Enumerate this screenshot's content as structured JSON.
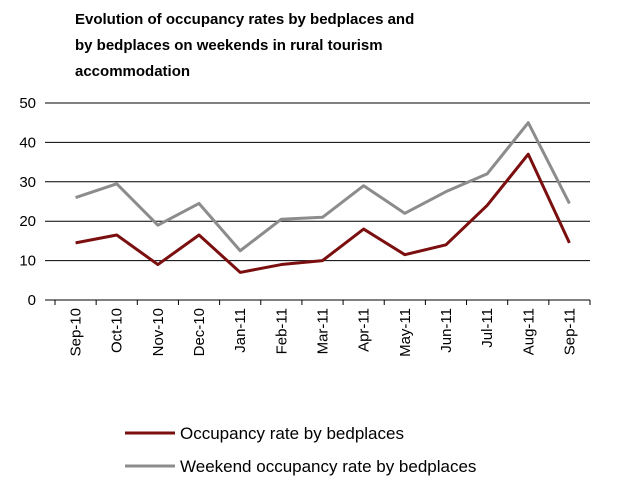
{
  "chart_data": {
    "type": "line",
    "title": [
      "Evolution of occupancy rates by bedplaces and",
      "by bedplaces on weekends in rural tourism",
      "accommodation"
    ],
    "categories": [
      "Sep-10",
      "Oct-10",
      "Nov-10",
      "Dec-10",
      "Jan-11",
      "Feb-11",
      "Mar-11",
      "Apr-11",
      "May-11",
      "Jun-11",
      "Jul-11",
      "Aug-11",
      "Sep-11"
    ],
    "series": [
      {
        "name": "Occupancy rate by bedplaces",
        "color": "#7b0f0f",
        "values": [
          14.5,
          16.5,
          9,
          16.5,
          7,
          9,
          10,
          18,
          11.5,
          14,
          24,
          37,
          14.5
        ]
      },
      {
        "name": "Weekend occupancy rate by bedplaces",
        "color": "#8c8c8c",
        "values": [
          26,
          29.5,
          19,
          24.5,
          12.5,
          20.5,
          21,
          29,
          22,
          27.5,
          32,
          45,
          24.5
        ]
      }
    ],
    "ylim": [
      0,
      50
    ],
    "yticks": [
      0,
      10,
      20,
      30,
      40,
      50
    ],
    "grid": true
  }
}
